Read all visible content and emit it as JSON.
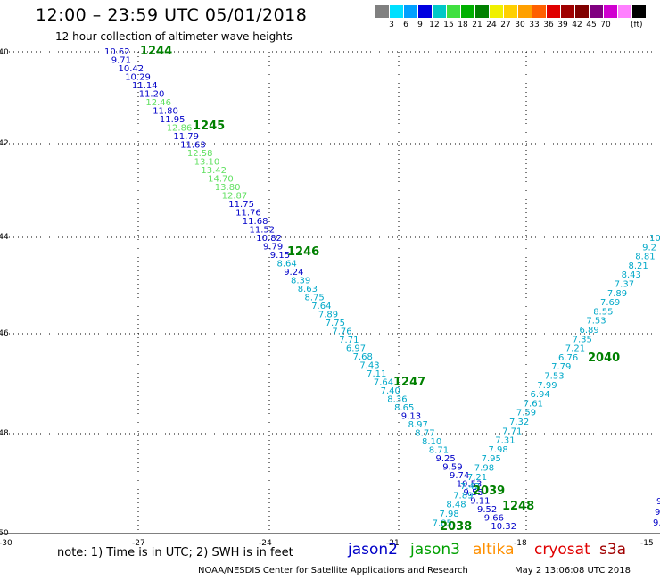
{
  "header": {
    "title": "12:00 – 23:59 UTC 05/01/2018",
    "subtitle": "12 hour collection of altimeter wave heights"
  },
  "legend": {
    "colors": [
      "#808080",
      "#00e0ff",
      "#00a0ff",
      "#0000e0",
      "#00c8c8",
      "#40e040",
      "#00b000",
      "#008000",
      "#f0f000",
      "#ffd000",
      "#ffa000",
      "#ff6000",
      "#e00000",
      "#a00000",
      "#800000",
      "#800080",
      "#d000d0",
      "#ff80ff",
      "#000000"
    ],
    "labels": [
      "3",
      "6",
      "9",
      "12",
      "15",
      "18",
      "21",
      "24",
      "27",
      "30",
      "33",
      "36",
      "39",
      "42",
      "45",
      "70"
    ],
    "unit": "(ft)"
  },
  "axes": {
    "x_ticks": [
      "-27",
      "-24",
      "-21",
      "-18",
      "-15"
    ],
    "y_ticks": [
      "-40",
      "-42",
      "-44",
      "-46",
      "-48",
      "-50"
    ],
    "corner_label": "-30"
  },
  "colors": {
    "jason2": "#0000c8",
    "jason3": "#00a000",
    "altika": "#ff9000",
    "cryosat": "#e00000",
    "s3a": "#a00000",
    "light_green": "#60e060",
    "cyan": "#00a8c8",
    "time_label": "#008000"
  },
  "track_a": {
    "values": [
      "10.62",
      "9.71",
      "10.42",
      "10.29",
      "11.14",
      "11.20",
      "12.46",
      "11.80",
      "11.95",
      "12.86",
      "11.79",
      "11.63",
      "12.58",
      "13.10",
      "13.42",
      "14.70",
      "13.80",
      "12.87",
      "11.75",
      "11.76",
      "11.68",
      "11.52",
      "10.82",
      "9.79",
      "9.15",
      "8.64",
      "9.24",
      "8.39",
      "8.63",
      "8.75",
      "7.64",
      "7.89",
      "7.75",
      "7.76",
      "7.71",
      "6.97",
      "7.68",
      "7.43",
      "7.11",
      "7.64",
      "7.40",
      "8.36",
      "8.65",
      "9.13",
      "8.97",
      "8.77",
      "8.10",
      "8.71",
      "9.25",
      "9.59",
      "9.74",
      "10.53",
      "9.55",
      "9.11",
      "9.52",
      "9.66",
      "10.32"
    ],
    "color_keys": [
      "jason2",
      "jason2",
      "jason2",
      "jason2",
      "jason2",
      "jason2",
      "light_green",
      "jason2",
      "jason2",
      "light_green",
      "jason2",
      "jason2",
      "light_green",
      "light_green",
      "light_green",
      "light_green",
      "light_green",
      "light_green",
      "jason2",
      "jason2",
      "jason2",
      "jason2",
      "jason2",
      "jason2",
      "jason2",
      "cyan",
      "jason2",
      "cyan",
      "cyan",
      "cyan",
      "cyan",
      "cyan",
      "cyan",
      "cyan",
      "cyan",
      "cyan",
      "cyan",
      "cyan",
      "cyan",
      "cyan",
      "cyan",
      "cyan",
      "cyan",
      "jason2",
      "cyan",
      "cyan",
      "cyan",
      "cyan",
      "jason2",
      "jason2",
      "jason2",
      "jason2",
      "jason2",
      "jason2",
      "jason2",
      "jason2",
      "jason2"
    ]
  },
  "track_b": {
    "values": [
      "10",
      "9.2",
      "8.81",
      "8.21",
      "8.43",
      "7.37",
      "7.89",
      "7.69",
      "8.55",
      "7.53",
      "6.89",
      "7.35",
      "7.21",
      "6.76",
      "7.79",
      "7.53",
      "7.99",
      "6.94",
      "7.61",
      "7.59",
      "7.32",
      "7.71",
      "7.31",
      "7.98",
      "7.95",
      "7.98",
      "7.21",
      "7.42",
      "7.89",
      "8.48",
      "7.98",
      "7.85"
    ]
  },
  "track_c": {
    "values": [
      "9",
      "9",
      "9.3"
    ]
  },
  "time_labels": [
    "1244",
    "1245",
    "1246",
    "1247",
    "2039",
    "1248",
    "2038",
    "2040"
  ],
  "note": "note:  1) Time is in UTC;  2) SWH is in feet",
  "satellites": [
    "jason2",
    "jason3",
    "altika",
    "cryosat",
    "s3a"
  ],
  "footer": {
    "credit": "NOAA/NESDIS Center for Satellite Applications and Research",
    "timestamp": "May  2 13:06:08 UTC 2018"
  }
}
